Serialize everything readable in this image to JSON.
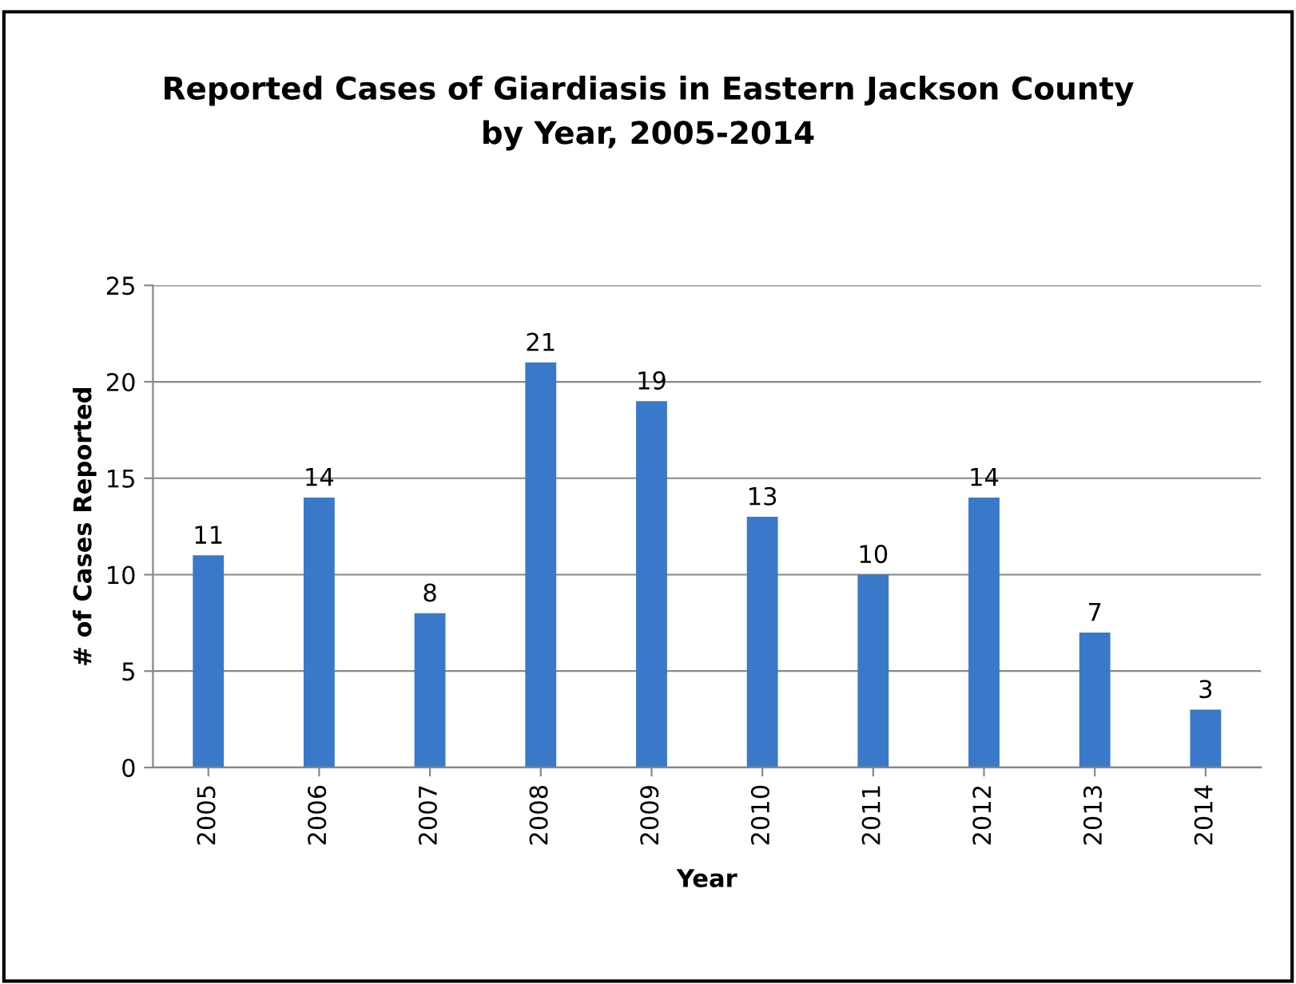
{
  "chart_data": {
    "type": "bar",
    "title": "Reported Cases of Giardiasis in Eastern Jackson County\nby Year, 2005-2014",
    "xlabel": "Year",
    "ylabel": "# of Cases Reported",
    "categories": [
      "2005",
      "2006",
      "2007",
      "2008",
      "2009",
      "2010",
      "2011",
      "2012",
      "2013",
      "2014"
    ],
    "values": [
      11,
      14,
      8,
      21,
      19,
      13,
      10,
      14,
      7,
      3
    ],
    "color": "#3a78c9",
    "ylim": [
      0,
      25
    ],
    "yticks": [
      0,
      5,
      10,
      15,
      20,
      25
    ],
    "grid": "y",
    "data_labels": true
  }
}
